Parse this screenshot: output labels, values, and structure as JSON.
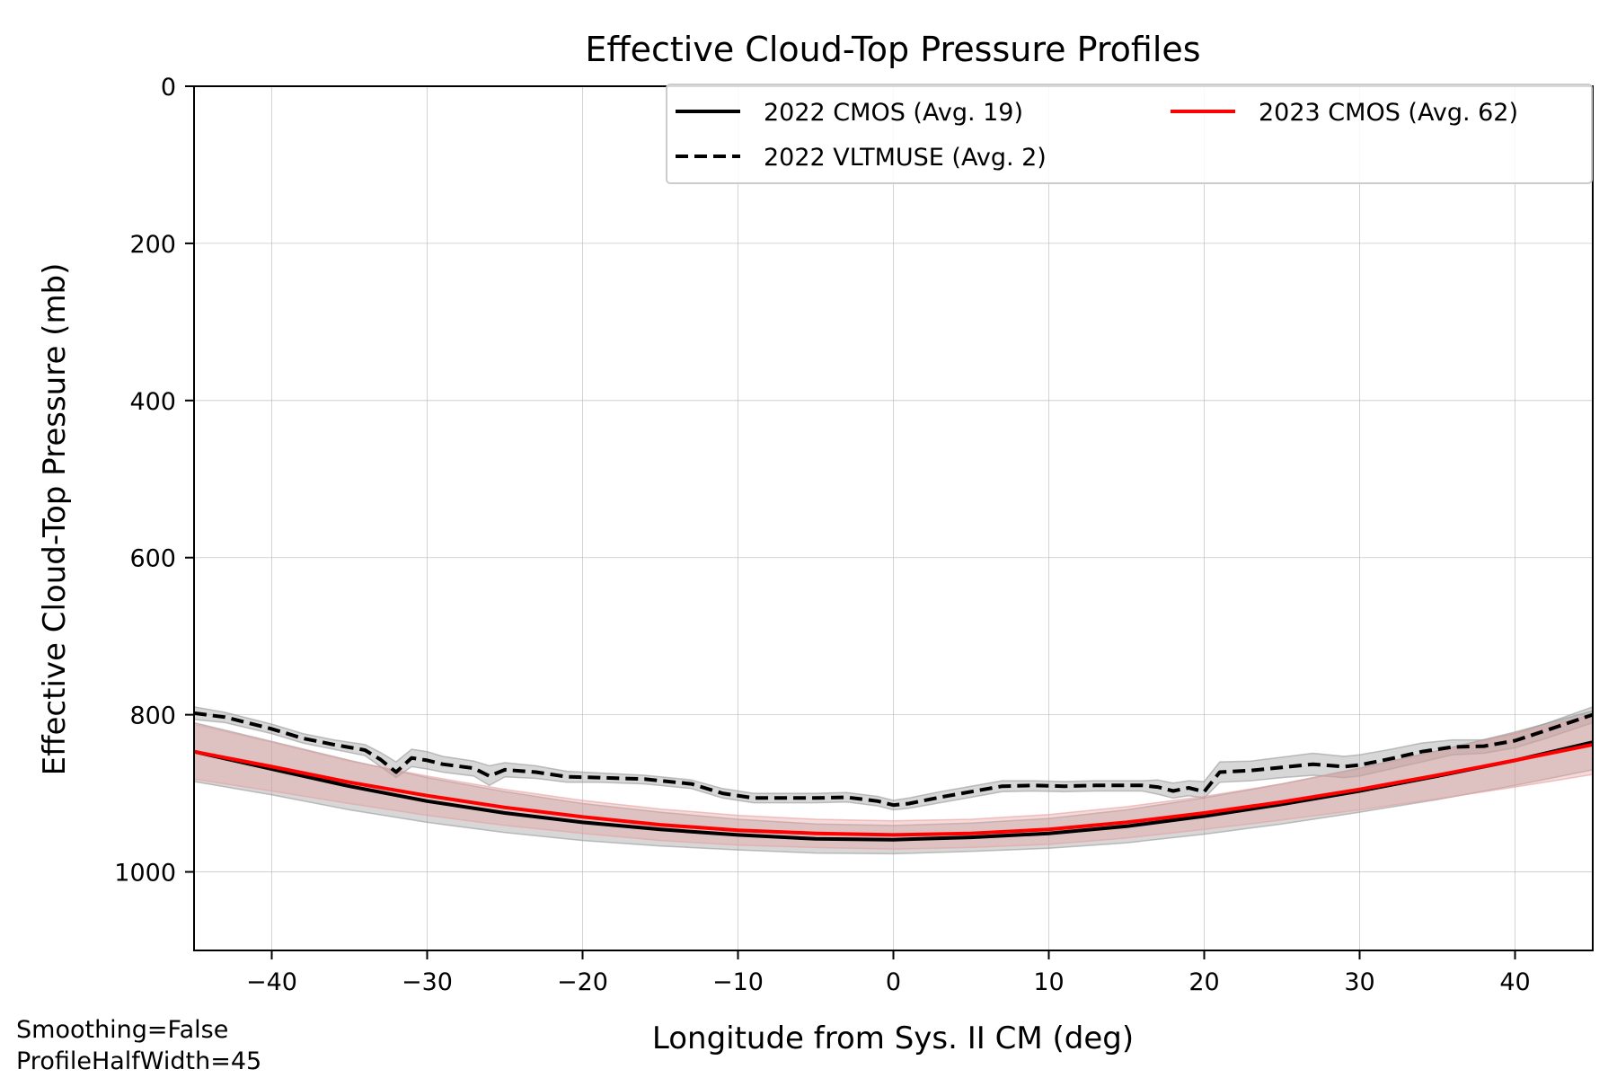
{
  "chart_data": {
    "type": "line",
    "title": "Effective Cloud-Top Pressure Profiles",
    "xlabel": "Longitude from Sys. II CM (deg)",
    "ylabel": "Effective Cloud-Top Pressure (mb)",
    "xlim": [
      -45,
      45
    ],
    "ylim": [
      0,
      1100
    ],
    "y_inverted": true,
    "grid": true,
    "legend_position": "top-right",
    "xticks": [
      -40,
      -30,
      -20,
      -10,
      0,
      10,
      20,
      30,
      40
    ],
    "xtick_labels": [
      "−40",
      "−30",
      "−20",
      "−10",
      "0",
      "10",
      "20",
      "30",
      "40"
    ],
    "yticks": [
      0,
      200,
      400,
      600,
      800,
      1000
    ],
    "ytick_labels": [
      "0",
      "200",
      "400",
      "600",
      "800",
      "1000"
    ],
    "series": [
      {
        "name": "2022 CMOS (Avg. 19)",
        "color": "#000000",
        "style": "solid",
        "band_color": "#9a9a9a",
        "x": [
          -45,
          -40,
          -35,
          -30,
          -25,
          -20,
          -15,
          -10,
          -5,
          0,
          5,
          10,
          15,
          20,
          25,
          30,
          35,
          40,
          45
        ],
        "y": [
          847,
          869,
          891,
          910,
          925,
          937,
          946,
          953,
          958,
          959,
          956,
          951,
          942,
          929,
          914,
          897,
          878,
          858,
          835
        ],
        "band_lower": [
          810,
          834,
          858,
          880,
          898,
          913,
          924,
          933,
          939,
          941,
          938,
          932,
          921,
          906,
          888,
          868,
          846,
          822,
          795
        ],
        "band_upper": [
          885,
          902,
          921,
          937,
          950,
          960,
          967,
          972,
          976,
          977,
          974,
          970,
          963,
          952,
          939,
          924,
          908,
          890,
          870
        ]
      },
      {
        "name": "2022 VLTMUSE (Avg. 2)",
        "color": "#000000",
        "style": "dashed",
        "band_color": "#9a9a9a",
        "x": [
          -45,
          -43,
          -40,
          -38,
          -36,
          -34,
          -33,
          -32,
          -31,
          -30,
          -29,
          -27,
          -26,
          -25,
          -23,
          -21,
          -19,
          -16,
          -13,
          -11,
          -9,
          -7,
          -5,
          -3,
          -1,
          0,
          1,
          3,
          5,
          7,
          9,
          11,
          13,
          16,
          17,
          18,
          19,
          20,
          21,
          23,
          25,
          27,
          29,
          30,
          32,
          34,
          36,
          38,
          40,
          42,
          45
        ],
        "y": [
          798,
          803,
          818,
          830,
          838,
          845,
          857,
          873,
          855,
          858,
          863,
          868,
          878,
          870,
          873,
          879,
          880,
          882,
          888,
          900,
          906,
          906,
          906,
          905,
          910,
          915,
          913,
          905,
          898,
          891,
          890,
          891,
          890,
          890,
          892,
          897,
          893,
          898,
          873,
          871,
          867,
          863,
          866,
          864,
          856,
          847,
          841,
          840,
          833,
          820,
          800
        ],
        "band_lower": [
          790,
          797,
          812,
          824,
          832,
          838,
          848,
          860,
          844,
          847,
          853,
          859,
          865,
          861,
          865,
          872,
          874,
          877,
          883,
          894,
          900,
          900,
          900,
          899,
          904,
          909,
          906,
          898,
          891,
          884,
          884,
          885,
          884,
          884,
          883,
          887,
          884,
          885,
          860,
          859,
          854,
          849,
          853,
          851,
          844,
          836,
          832,
          832,
          824,
          811,
          790
        ],
        "band_upper": [
          806,
          810,
          824,
          836,
          844,
          852,
          866,
          880,
          866,
          869,
          873,
          878,
          890,
          879,
          881,
          886,
          886,
          888,
          894,
          906,
          912,
          912,
          912,
          911,
          916,
          921,
          919,
          912,
          905,
          898,
          897,
          898,
          897,
          897,
          901,
          906,
          903,
          906,
          886,
          884,
          880,
          877,
          880,
          878,
          869,
          860,
          851,
          849,
          842,
          830,
          810
        ]
      },
      {
        "name": "2023 CMOS (Avg. 62)",
        "color": "#ff0000",
        "style": "solid",
        "band_color": "#e8a0a0",
        "x": [
          -45,
          -40,
          -35,
          -30,
          -25,
          -20,
          -15,
          -10,
          -5,
          0,
          5,
          10,
          15,
          20,
          25,
          30,
          35,
          40,
          45
        ],
        "y": [
          847,
          866,
          886,
          903,
          918,
          930,
          940,
          947,
          951,
          953,
          951,
          946,
          937,
          925,
          911,
          895,
          877,
          858,
          838
        ],
        "band_lower": [
          812,
          835,
          859,
          878,
          895,
          909,
          920,
          928,
          933,
          935,
          933,
          927,
          917,
          904,
          888,
          869,
          847,
          824,
          800
        ],
        "band_upper": [
          882,
          897,
          913,
          928,
          941,
          951,
          960,
          966,
          969,
          971,
          969,
          965,
          957,
          946,
          934,
          921,
          907,
          892,
          876
        ]
      }
    ],
    "annotations": [
      "Smoothing=False",
      "ProfileHalfWidth=45"
    ]
  }
}
